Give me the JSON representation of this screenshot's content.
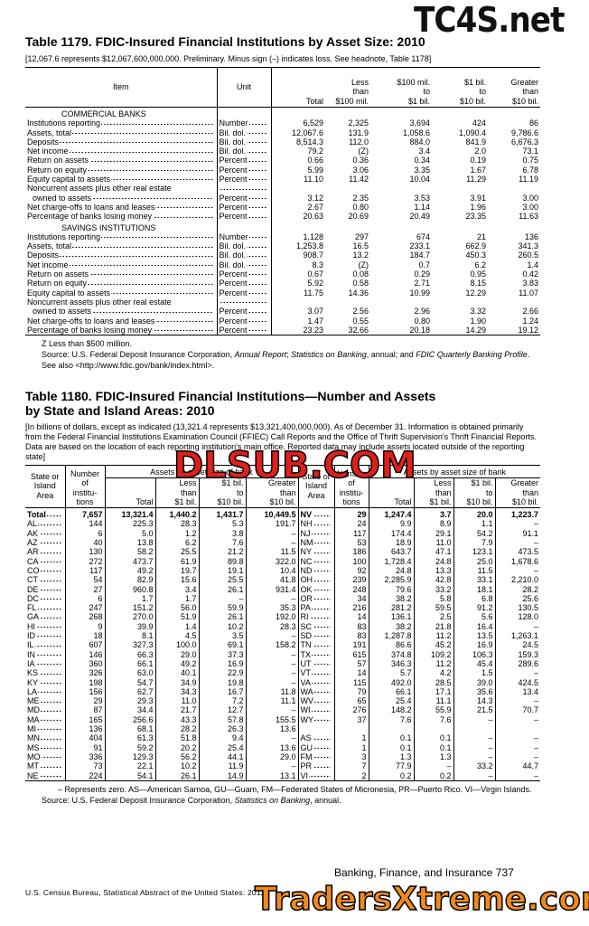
{
  "watermarks": {
    "top": "TC4S.net",
    "middle": "DLSUB.COM",
    "bottom": "TradersXtreme.com"
  },
  "table1179": {
    "title": "Table 1179. FDIC-Insured Financial Institutions by Asset Size: 2010",
    "headnote": "[12,067.6 represents $12,067,600,000,000. Preliminary. Minus sign (–) indicates loss. See headnote, Table 1178]",
    "columns": [
      [
        "Item"
      ],
      [
        "Unit"
      ],
      [
        "Total"
      ],
      [
        "Less",
        "than",
        "$100 mil."
      ],
      [
        "$100 mil.",
        "to",
        "$1 bil."
      ],
      [
        "$1 bil.",
        "to",
        "$10 bil."
      ],
      [
        "Greater",
        "than",
        "$10 bil."
      ]
    ],
    "sections": [
      {
        "label": "COMMERCIAL BANKS",
        "rows": [
          [
            "Institutions reporting",
            "Number",
            "6,529",
            "2,325",
            "3,694",
            "424",
            "86"
          ],
          [
            "Assets, total",
            "Bil. dol.",
            "12,067.6",
            "131.9",
            "1,058.6",
            "1,090.4",
            "9,786.6"
          ],
          [
            "Deposits",
            "Bil. dol.",
            "8,514.3",
            "112.0",
            "884.0",
            "841.9",
            "6,676.3"
          ],
          [
            "Net income",
            "Bil. dol.",
            "79.2",
            "(Z)",
            "3.4",
            "2.0",
            "73.1"
          ],
          [
            "Return on assets",
            "Percent",
            "0.66",
            "0.36",
            "0.34",
            "0.19",
            "0.75"
          ],
          [
            "Return on equity",
            "Percent",
            "5.99",
            "3.06",
            "3.35",
            "1.67",
            "6.78"
          ],
          [
            "Equity capital to assets",
            "Percent",
            "11.10",
            "11.42",
            "10.04",
            "11.29",
            "11.19"
          ],
          [
            "Noncurrent assets plus other real estate"
          ],
          [
            "owned to assets",
            "Percent",
            "3.12",
            "2.35",
            "3.53",
            "3.91",
            "3.00"
          ],
          [
            "Net charge-offs to loans and leases",
            "Percent",
            "2.67",
            "0.80",
            "1.14",
            "1.96",
            "3.00"
          ],
          [
            "Percentage of banks losing money",
            "Percent",
            "20.63",
            "20.69",
            "20.49",
            "23.35",
            "11.63"
          ]
        ]
      },
      {
        "label": "SAVINGS INSTITUTIONS",
        "rows": [
          [
            "Institutions reporting",
            "Number",
            "1,128",
            "297",
            "674",
            "21",
            "136"
          ],
          [
            "Assets, total",
            "Bil. dol.",
            "1,253.8",
            "16.5",
            "233.1",
            "662.9",
            "341.3"
          ],
          [
            "Deposits",
            "Bil. dol.",
            "908.7",
            "13.2",
            "184.7",
            "450.3",
            "260.5"
          ],
          [
            "Net income",
            "Bil. dol.",
            "8.3",
            "(Z)",
            "0.7",
            "6.2",
            "1.4"
          ],
          [
            "Return on assets",
            "Percent",
            "0.67",
            "0.08",
            "0.29",
            "0.95",
            "0.42"
          ],
          [
            "Return on equity",
            "Percent",
            "5.92",
            "0.58",
            "2.71",
            "8.15",
            "3.83"
          ],
          [
            "Equity capital to assets",
            "Percent",
            "11.75",
            "14.36",
            "10.99",
            "12.29",
            "11.07"
          ],
          [
            "Noncurrent assets plus other real estate"
          ],
          [
            "owned to assets",
            "Percent",
            "3.07",
            "2.56",
            "2.96",
            "3.32",
            "2.66"
          ],
          [
            "Net charge-offs to loans and leases",
            "Percent",
            "1.47",
            "0.55",
            "0.80",
            "1.90",
            "1.24"
          ],
          [
            "Percentage of banks losing money",
            "Percent",
            "23.23",
            "32.66",
            "20.18",
            "14.29",
            "19.12"
          ]
        ]
      }
    ],
    "notes": [
      [
        {
          "text": "Z Less than $500 million."
        }
      ],
      [
        {
          "text": "Source: U.S. Federal Deposit Insurance Corporation, "
        },
        {
          "text": "Annual Report",
          "italic": true
        },
        {
          "text": "; "
        },
        {
          "text": "Statistics on Banking",
          "italic": true
        },
        {
          "text": ", annual; and "
        },
        {
          "text": "FDIC Quarterly Banking Profile",
          "italic": true
        },
        {
          "text": ". See also <http://www.fdic.gov/bank/index.html>."
        }
      ]
    ]
  },
  "table1180": {
    "title": "Table 1180. FDIC-Insured Financial Institutions—Number and Assets by State and Island Areas: 2010",
    "headnote": "[In billions of dollars, except as indicated (13,321.4 represents $13,321,400,000,000). As of December 31. Information is obtained primarily from the Federal Financial Institutions Examination Council (FFIEC) Call Reports and the Office of Thrift Supervision's Thrift Financial Reports. Data are based on the location of each reporting institution's main office. Reported data may include assets located outside of the reporting state]",
    "state_header": [
      "State or",
      "Island",
      "Area"
    ],
    "number_header": [
      "Number",
      "of",
      "institu-",
      "tions"
    ],
    "group_header": "Assets by asset size of bank",
    "sub_headers": [
      [
        "Total"
      ],
      [
        "Less",
        "than",
        "$1 bil."
      ],
      [
        "$1 bil.",
        "to",
        "$10 bil."
      ],
      [
        "Greater",
        "than",
        "$10 bil."
      ]
    ],
    "left_rows": [
      [
        "Total",
        "7,657",
        "13,321.4",
        "1,440.2",
        "1,431.7",
        "10,449.5"
      ],
      [
        "AL",
        "144",
        "225.3",
        "28.3",
        "5.3",
        "191.7"
      ],
      [
        "AK",
        "6",
        "5.0",
        "1.2",
        "3.8",
        "–"
      ],
      [
        "AZ",
        "40",
        "13.8",
        "6.2",
        "7.6",
        "–"
      ],
      [
        "AR",
        "130",
        "58.2",
        "25.5",
        "21.2",
        "11.5"
      ],
      [
        "CA",
        "272",
        "473.7",
        "61.9",
        "89.8",
        "322.0"
      ],
      [
        "CO",
        "117",
        "49.2",
        "19.7",
        "19.1",
        "10.4"
      ],
      [
        "CT",
        "54",
        "82.9",
        "15.6",
        "25.5",
        "41.8"
      ],
      [
        "DE",
        "27",
        "960.8",
        "3.4",
        "26.1",
        "931.4"
      ],
      [
        "DC",
        "6",
        "1.7",
        "1.7",
        "–",
        "–"
      ],
      [
        "FL",
        "247",
        "151.2",
        "56.0",
        "59.9",
        "35.3"
      ],
      [
        "GA",
        "268",
        "270.0",
        "51.9",
        "26.1",
        "192.0"
      ],
      [
        "HI",
        "9",
        "39.9",
        "1.4",
        "10.2",
        "28.3"
      ],
      [
        "ID",
        "18",
        "8.1",
        "4.5",
        "3.5",
        "–"
      ],
      [
        "IL",
        "607",
        "327.3",
        "100.0",
        "69.1",
        "158.2"
      ],
      [
        "IN",
        "146",
        "66.3",
        "29.0",
        "37.3",
        "–"
      ],
      [
        "IA",
        "360",
        "66.1",
        "49.2",
        "16.9",
        "–"
      ],
      [
        "KS",
        "326",
        "63.0",
        "40.1",
        "22.9",
        "–"
      ],
      [
        "KY",
        "198",
        "54.7",
        "34.9",
        "19.8",
        "–"
      ],
      [
        "LA",
        "156",
        "62.7",
        "34.3",
        "16.7",
        "11.8"
      ],
      [
        "ME",
        "29",
        "29.3",
        "11.0",
        "7.2",
        "11.1"
      ],
      [
        "MD",
        "87",
        "34.4",
        "21.7",
        "12.7",
        "–"
      ],
      [
        "MA",
        "165",
        "256.6",
        "43.3",
        "57.8",
        "155.5"
      ],
      [
        "MI",
        "136",
        "68.1",
        "28.2",
        "26.3",
        "13.6"
      ],
      [
        "MN",
        "404",
        "61.3",
        "51.8",
        "9.4",
        "–"
      ],
      [
        "MS",
        "91",
        "59.2",
        "20.2",
        "25.4",
        "13.6"
      ],
      [
        "MO",
        "336",
        "129.3",
        "56.2",
        "44.1",
        "29.0"
      ],
      [
        "MT",
        "73",
        "22.1",
        "10.2",
        "11.9",
        "–"
      ],
      [
        "NE",
        "224",
        "54.1",
        "26.1",
        "14.9",
        "13.1"
      ]
    ],
    "right_rows": [
      [
        "NV",
        "29",
        "1,247.4",
        "3.7",
        "20.0",
        "1,223.7"
      ],
      [
        "NH",
        "24",
        "9.9",
        "8.9",
        "1.1",
        "–"
      ],
      [
        "NJ",
        "117",
        "174.4",
        "29.1",
        "54.2",
        "91.1"
      ],
      [
        "NM",
        "53",
        "18.9",
        "11.0",
        "7.9",
        "–"
      ],
      [
        "NY",
        "186",
        "643.7",
        "47.1",
        "123.1",
        "473.5"
      ],
      [
        "NC",
        "100",
        "1,728.4",
        "24.8",
        "25.0",
        "1,678.6"
      ],
      [
        "ND",
        "92",
        "24.8",
        "13.3",
        "11.5",
        "–"
      ],
      [
        "OH",
        "239",
        "2,285.9",
        "42.8",
        "33.1",
        "2,210.0"
      ],
      [
        "OK",
        "248",
        "79.6",
        "33.2",
        "18.1",
        "28.2"
      ],
      [
        "OR",
        "34",
        "38.2",
        "5.8",
        "6.8",
        "25.6"
      ],
      [
        "PA",
        "216",
        "281.2",
        "59.5",
        "91.2",
        "130.5"
      ],
      [
        "RI",
        "14",
        "136.1",
        "2.5",
        "5.6",
        "128.0"
      ],
      [
        "SC",
        "83",
        "38.2",
        "21.8",
        "16.4",
        "–"
      ],
      [
        "SD",
        "83",
        "1,287.8",
        "11.2",
        "13.5",
        "1,263.1"
      ],
      [
        "TN",
        "191",
        "86.6",
        "45.2",
        "16.9",
        "24.5"
      ],
      [
        "TX",
        "615",
        "374.8",
        "109.2",
        "106.3",
        "159.3"
      ],
      [
        "UT",
        "57",
        "346.3",
        "11.2",
        "45.4",
        "289.6"
      ],
      [
        "VT",
        "14",
        "5.7",
        "4.2",
        "1.5",
        "–"
      ],
      [
        "VA",
        "115",
        "492.0",
        "28.5",
        "39.0",
        "424.5"
      ],
      [
        "WA",
        "79",
        "66.1",
        "17.1",
        "35.6",
        "13.4"
      ],
      [
        "WV",
        "65",
        "25.4",
        "11.1",
        "14.3",
        "–"
      ],
      [
        "WI",
        "276",
        "148.2",
        "55.9",
        "21.5",
        "70.7"
      ],
      [
        "WY",
        "37",
        "7.6",
        "7.6",
        "–",
        "–"
      ],
      null,
      [
        "AS",
        "1",
        "0.1",
        "0.1",
        "–",
        "–"
      ],
      [
        "GU",
        "1",
        "0.1",
        "0.1",
        "–",
        "–"
      ],
      [
        "FM",
        "3",
        "1.3",
        "1.3",
        "–",
        "–"
      ],
      [
        "PR",
        "7",
        "77.9",
        "–",
        "33.2",
        "44.7"
      ],
      [
        "VI",
        "2",
        "0.2",
        "0.2",
        "–",
        "–"
      ]
    ],
    "notes": [
      [
        {
          "text": "– Represents zero. AS—American Samoa, GU—Guam, FM—Federated States of Micronesia, PR—Puerto Rico. VI—Virgin Islands."
        }
      ],
      [
        {
          "text": "Source: U.S. Federal Deposit Insurance Corporation, "
        },
        {
          "text": "Statistics on Banking",
          "italic": true
        },
        {
          "text": ", annual."
        }
      ]
    ]
  },
  "footer": {
    "left": "U.S. Census Bureau, Statistical Abstract of the United States: 2012",
    "right": "Banking, Finance, and Insurance   737"
  }
}
